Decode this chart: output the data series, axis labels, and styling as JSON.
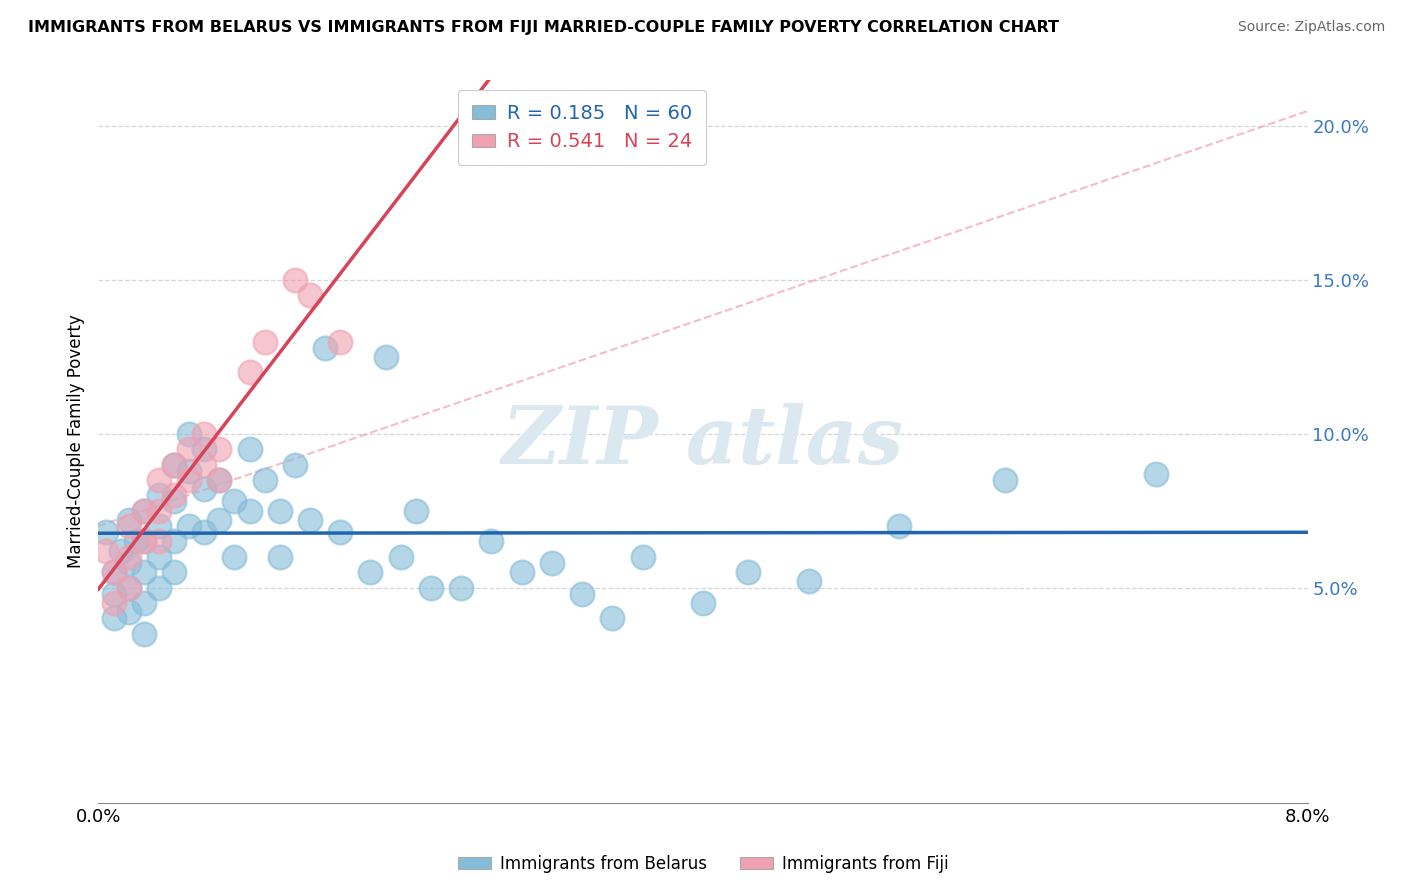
{
  "title": "IMMIGRANTS FROM BELARUS VS IMMIGRANTS FROM FIJI MARRIED-COUPLE FAMILY POVERTY CORRELATION CHART",
  "source": "Source: ZipAtlas.com",
  "ylabel": "Married-Couple Family Poverty",
  "y_tick_vals": [
    0.05,
    0.1,
    0.15,
    0.2
  ],
  "y_tick_labels": [
    "5.0%",
    "10.0%",
    "15.0%",
    "20.0%"
  ],
  "x_tick_labels": [
    "0.0%",
    "8.0%"
  ],
  "x_lim": [
    0.0,
    0.08
  ],
  "y_lim": [
    -0.02,
    0.215
  ],
  "legend_label1": "Immigrants from Belarus",
  "legend_label2": "Immigrants from Fiji",
  "R_belarus": 0.185,
  "N_belarus": 60,
  "R_fiji": 0.541,
  "N_fiji": 24,
  "color_belarus": "#85bcd8",
  "color_fiji": "#f0a0b0",
  "line_color_belarus": "#2166ac",
  "line_color_fiji": "#d6445a",
  "dash_color": "#f0a0b0",
  "bg_color": "#ffffff",
  "grid_color": "#cccccc",
  "watermark_text": "ZIPatlas",
  "watermark_color": "#dce8f0",
  "bel_x": [
    0.0005,
    0.001,
    0.001,
    0.001,
    0.0015,
    0.002,
    0.002,
    0.002,
    0.002,
    0.0025,
    0.003,
    0.003,
    0.003,
    0.003,
    0.003,
    0.004,
    0.004,
    0.004,
    0.004,
    0.005,
    0.005,
    0.005,
    0.005,
    0.006,
    0.006,
    0.006,
    0.007,
    0.007,
    0.007,
    0.008,
    0.008,
    0.009,
    0.009,
    0.01,
    0.01,
    0.011,
    0.012,
    0.012,
    0.013,
    0.014,
    0.015,
    0.016,
    0.018,
    0.019,
    0.02,
    0.021,
    0.022,
    0.024,
    0.026,
    0.028,
    0.03,
    0.032,
    0.034,
    0.036,
    0.04,
    0.043,
    0.047,
    0.053,
    0.06,
    0.07
  ],
  "bel_y": [
    0.068,
    0.055,
    0.048,
    0.04,
    0.062,
    0.072,
    0.058,
    0.05,
    0.042,
    0.065,
    0.075,
    0.065,
    0.055,
    0.045,
    0.035,
    0.08,
    0.07,
    0.06,
    0.05,
    0.09,
    0.078,
    0.065,
    0.055,
    0.1,
    0.088,
    0.07,
    0.095,
    0.082,
    0.068,
    0.085,
    0.072,
    0.078,
    0.06,
    0.095,
    0.075,
    0.085,
    0.075,
    0.06,
    0.09,
    0.072,
    0.128,
    0.068,
    0.055,
    0.125,
    0.06,
    0.075,
    0.05,
    0.05,
    0.065,
    0.055,
    0.058,
    0.048,
    0.04,
    0.06,
    0.045,
    0.055,
    0.052,
    0.07,
    0.085,
    0.087
  ],
  "fij_x": [
    0.0005,
    0.001,
    0.001,
    0.002,
    0.002,
    0.002,
    0.003,
    0.003,
    0.004,
    0.004,
    0.004,
    0.005,
    0.005,
    0.006,
    0.006,
    0.007,
    0.007,
    0.008,
    0.008,
    0.01,
    0.011,
    0.013,
    0.014,
    0.016
  ],
  "fij_y": [
    0.062,
    0.055,
    0.045,
    0.07,
    0.06,
    0.05,
    0.075,
    0.065,
    0.085,
    0.075,
    0.065,
    0.09,
    0.08,
    0.095,
    0.085,
    0.1,
    0.09,
    0.095,
    0.085,
    0.12,
    0.13,
    0.15,
    0.145,
    0.13
  ]
}
